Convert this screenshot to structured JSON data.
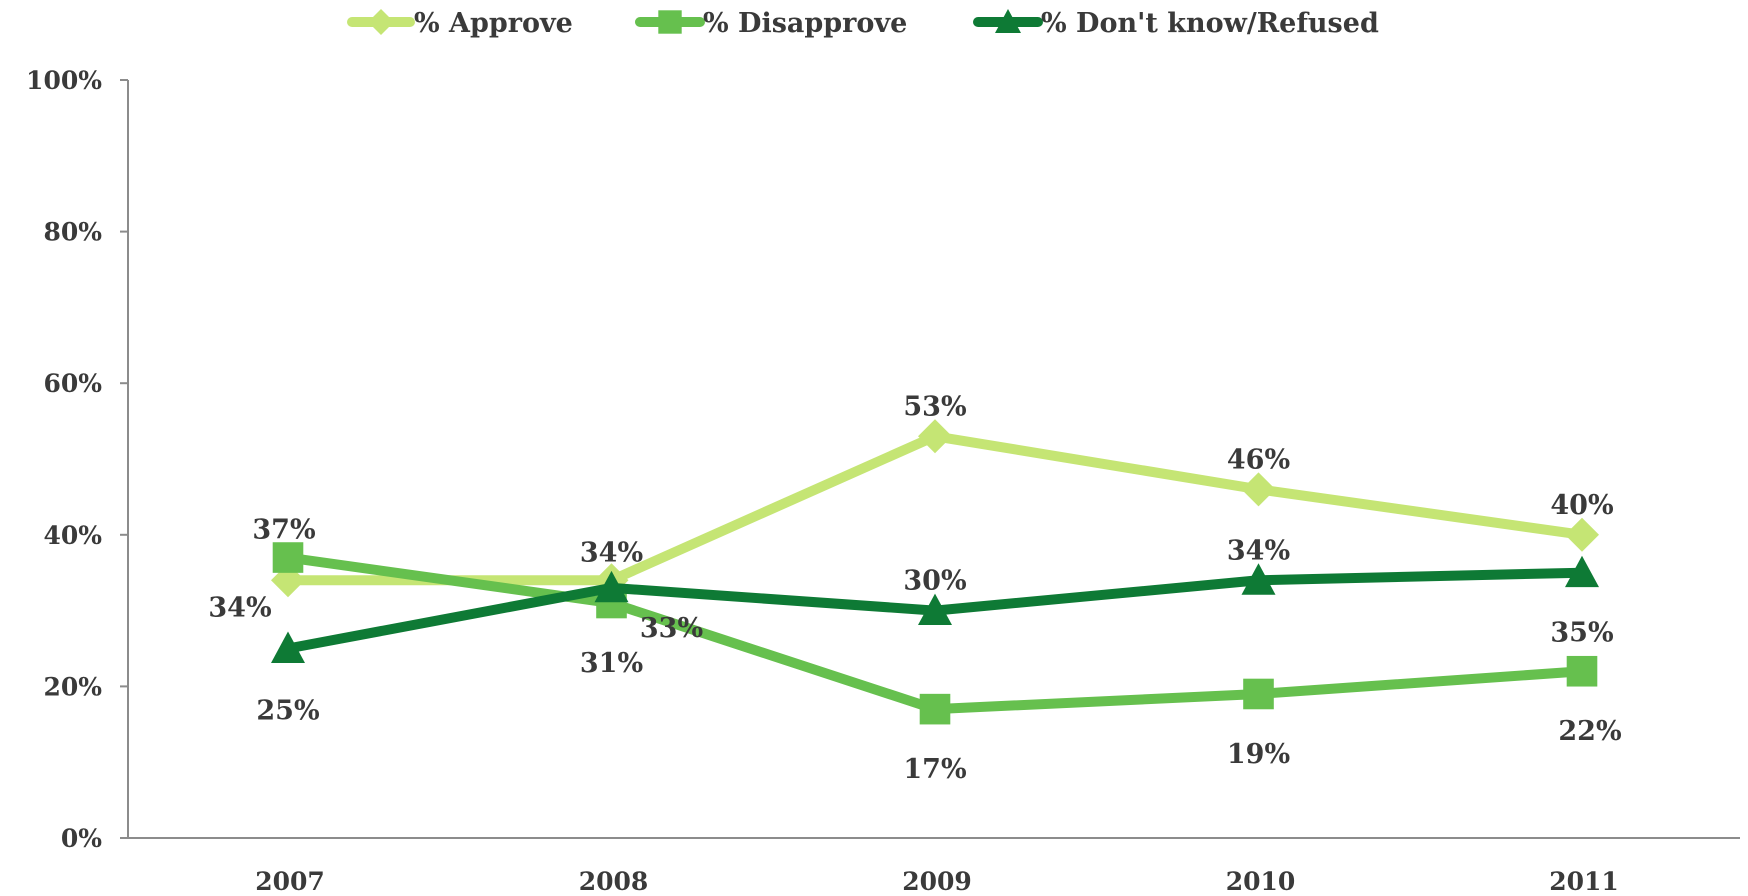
{
  "chart_data": {
    "type": "line",
    "title": "",
    "xlabel": "",
    "ylabel": "",
    "categories": [
      "2007",
      "2008",
      "2009",
      "2010",
      "2011"
    ],
    "ylim": [
      0,
      100
    ],
    "yticks": [
      0,
      20,
      40,
      60,
      80,
      100
    ],
    "ytick_labels": [
      "0%",
      "20%",
      "40%",
      "60%",
      "80%",
      "100%"
    ],
    "grid": false,
    "legend_position": "top",
    "series": [
      {
        "name": "% Approve",
        "values": [
          34,
          34,
          53,
          46,
          40
        ],
        "labels": [
          "34%",
          "34%",
          "53%",
          "46%",
          "40%"
        ],
        "color": "#c5e574",
        "marker": "diamond"
      },
      {
        "name": "% Disapprove",
        "values": [
          37,
          31,
          17,
          19,
          22
        ],
        "labels": [
          "37%",
          "31%",
          "17%",
          "19%",
          "22%"
        ],
        "color": "#66c04e",
        "marker": "square"
      },
      {
        "name": "% Don't know/Refused",
        "values": [
          25,
          33,
          30,
          34,
          35
        ],
        "labels": [
          "25%",
          "33%",
          "30%",
          "34%",
          "35%"
        ],
        "color": "#0e7a35",
        "marker": "triangle"
      }
    ]
  }
}
